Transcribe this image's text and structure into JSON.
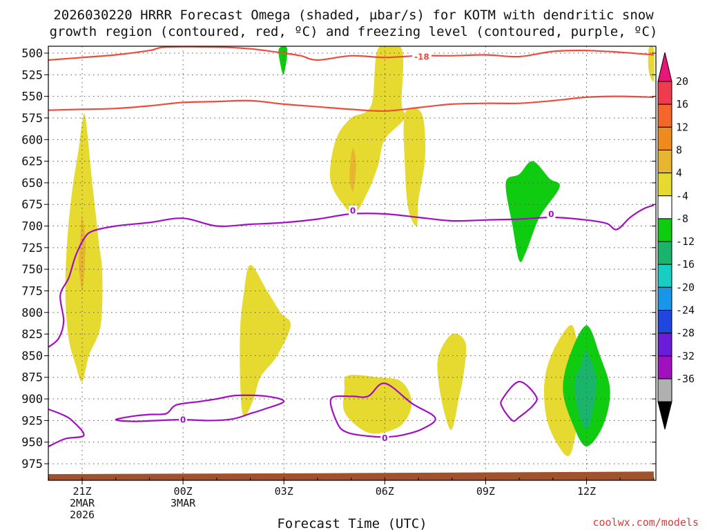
{
  "chart_data": {
    "type": "contour-timeheight",
    "title_line1": "2026030220 HRRR Forecast Omega (shaded, µbar/s) for KOTM with dendritic snow",
    "title_line2": "growth region (contoured, red, ºC) and freezing level (contoured, purple, ºC)",
    "xlabel": "Forecast Time (UTC)",
    "credit": "coolwx.com/models",
    "x_range": [
      20,
      38
    ],
    "y_range": [
      490,
      995
    ],
    "x_ticks": [
      {
        "x": 21,
        "line1": "21Z",
        "line2": "2MAR",
        "line3": "2026"
      },
      {
        "x": 24,
        "line1": "00Z",
        "line2": "3MAR",
        "line3": ""
      },
      {
        "x": 27,
        "line1": "03Z",
        "line2": "",
        "line3": ""
      },
      {
        "x": 30,
        "line1": "06Z",
        "line2": "",
        "line3": ""
      },
      {
        "x": 33,
        "line1": "09Z",
        "line2": "",
        "line3": ""
      },
      {
        "x": 36,
        "line1": "12Z",
        "line2": "",
        "line3": ""
      }
    ],
    "y_ticks": [
      "500",
      "525",
      "550",
      "575",
      "600",
      "625",
      "650",
      "675",
      "700",
      "725",
      "750",
      "775",
      "800",
      "825",
      "850",
      "875",
      "900",
      "925",
      "950",
      "975"
    ],
    "colorbar": {
      "labels": [
        "20",
        "16",
        "12",
        "8",
        "4",
        "-4",
        "-8",
        "-12",
        "-16",
        "-20",
        "-24",
        "-28",
        "-32",
        "-36"
      ],
      "colors": [
        "#ef3b4c",
        "#f5662a",
        "#ee8a1e",
        "#e8b531",
        "#e6d92f",
        "#ffffff",
        "#10cc10",
        "#1ab56a",
        "#18cdc3",
        "#1896e8",
        "#2046e0",
        "#6a1cd8",
        "#a010c0",
        "#b0b0b0"
      ],
      "top_arrow_color": "#e8157a",
      "bottom_arrow_color": "#000000"
    },
    "contour_labels": [
      {
        "text": "-18",
        "kind": "dgz",
        "x": 31.1,
        "y": 504
      },
      {
        "text": "0",
        "kind": "freezing",
        "x": 29.05,
        "y": 682
      },
      {
        "text": "0",
        "kind": "freezing",
        "x": 34.95,
        "y": 686
      },
      {
        "text": "0",
        "kind": "freezing",
        "x": 24.0,
        "y": 924
      },
      {
        "text": "0",
        "kind": "freezing",
        "x": 30.0,
        "y": 945
      }
    ],
    "series": [
      {
        "name": "dgz-upper",
        "kind": "line",
        "color": "#ef4a3c",
        "points": [
          [
            20,
            508
          ],
          [
            21,
            505
          ],
          [
            22,
            502
          ],
          [
            23,
            497
          ],
          [
            23.5,
            493
          ],
          [
            25,
            493
          ],
          [
            26,
            495
          ],
          [
            27,
            500
          ],
          [
            27.5,
            503
          ],
          [
            28,
            508
          ],
          [
            29,
            503
          ],
          [
            30,
            505
          ],
          [
            31,
            503
          ],
          [
            32,
            503
          ],
          [
            33,
            502
          ],
          [
            34,
            504
          ],
          [
            35,
            498
          ],
          [
            36,
            497
          ],
          [
            37,
            499
          ],
          [
            38,
            502
          ]
        ]
      },
      {
        "name": "dgz-lower",
        "kind": "line",
        "color": "#ef4a3c",
        "points": [
          [
            20,
            566
          ],
          [
            21,
            565
          ],
          [
            22,
            564
          ],
          [
            23,
            561
          ],
          [
            24,
            557
          ],
          [
            25,
            556
          ],
          [
            26,
            555
          ],
          [
            27,
            559
          ],
          [
            28,
            562
          ],
          [
            29,
            565
          ],
          [
            30,
            567
          ],
          [
            31,
            563
          ],
          [
            32,
            559
          ],
          [
            33,
            558
          ],
          [
            34,
            558
          ],
          [
            35,
            555
          ],
          [
            36,
            551
          ],
          [
            37,
            550
          ],
          [
            38,
            551
          ]
        ]
      },
      {
        "name": "freezing-level",
        "kind": "line",
        "color": "#a010c0",
        "points": [
          [
            20,
            840
          ],
          [
            20.3,
            830
          ],
          [
            20.45,
            810
          ],
          [
            20.35,
            780
          ],
          [
            20.6,
            760
          ],
          [
            20.8,
            735
          ],
          [
            21.05,
            715
          ],
          [
            21.3,
            706
          ],
          [
            22,
            700
          ],
          [
            23,
            696
          ],
          [
            24,
            691
          ],
          [
            25,
            700
          ],
          [
            26,
            698
          ],
          [
            27,
            696
          ],
          [
            28,
            692
          ],
          [
            29,
            686
          ],
          [
            30,
            686
          ],
          [
            31,
            690
          ],
          [
            32,
            694
          ],
          [
            33,
            693
          ],
          [
            34,
            692
          ],
          [
            35,
            690
          ],
          [
            36,
            693
          ],
          [
            36.6,
            697
          ],
          [
            36.9,
            704
          ],
          [
            37.3,
            690
          ],
          [
            37.7,
            680
          ],
          [
            38,
            676
          ]
        ]
      },
      {
        "name": "freezing-a",
        "kind": "closed",
        "color": "#a010c0",
        "points": [
          [
            23,
            918
          ],
          [
            23.5,
            917
          ],
          [
            23.8,
            907
          ],
          [
            24.5,
            903
          ],
          [
            25,
            900
          ],
          [
            25.6,
            896
          ],
          [
            26.5,
            897
          ],
          [
            27,
            903
          ],
          [
            26.4,
            912
          ],
          [
            26,
            917
          ],
          [
            25.5,
            923
          ],
          [
            24.8,
            925
          ],
          [
            24,
            924
          ],
          [
            23.2,
            925
          ],
          [
            22.5,
            926
          ],
          [
            22,
            924
          ],
          [
            22.5,
            920
          ]
        ]
      },
      {
        "name": "freezing-b",
        "kind": "closed",
        "color": "#a010c0",
        "points": [
          [
            28.4,
            900
          ],
          [
            29,
            897
          ],
          [
            29.5,
            897
          ],
          [
            30,
            882
          ],
          [
            30.8,
            905
          ],
          [
            31.5,
            922
          ],
          [
            31.1,
            935
          ],
          [
            30.5,
            942
          ],
          [
            30,
            944
          ],
          [
            29.5,
            943
          ],
          [
            28.9,
            939
          ],
          [
            28.6,
            929
          ]
        ]
      },
      {
        "name": "freezing-c",
        "kind": "closed",
        "color": "#a010c0",
        "points": [
          [
            33.5,
            900
          ],
          [
            34,
            880
          ],
          [
            34.5,
            897
          ],
          [
            34.4,
            908
          ],
          [
            34,
            921
          ],
          [
            33.8,
            925
          ],
          [
            33.5,
            910
          ]
        ]
      },
      {
        "name": "freezing-d",
        "kind": "line",
        "color": "#a010c0",
        "points": [
          [
            20,
            912
          ],
          [
            20.4,
            918
          ],
          [
            20.7,
            925
          ],
          [
            21.05,
            942
          ],
          [
            20.5,
            946
          ],
          [
            20,
            955
          ]
        ]
      },
      {
        "name": "omega-yellow-a",
        "kind": "filled",
        "color": "#e6d92f",
        "points": [
          [
            21,
            580
          ],
          [
            21.1,
            575
          ],
          [
            21.3,
            650
          ],
          [
            21.5,
            720
          ],
          [
            21.6,
            755
          ],
          [
            21.55,
            815
          ],
          [
            21.2,
            850
          ],
          [
            21,
            880
          ],
          [
            20.8,
            860
          ],
          [
            20.6,
            830
          ],
          [
            20.5,
            780
          ],
          [
            20.55,
            720
          ],
          [
            20.7,
            660
          ],
          [
            20.9,
            610
          ]
        ]
      },
      {
        "name": "omega-orange-a",
        "kind": "filled",
        "color": "#e8b531",
        "points": [
          [
            21,
            690
          ],
          [
            21.1,
            720
          ],
          [
            21.05,
            760
          ],
          [
            21,
            775
          ],
          [
            20.9,
            745
          ],
          [
            20.95,
            710
          ]
        ]
      },
      {
        "name": "omega-green-top",
        "kind": "filled",
        "color": "#10cc10",
        "points": [
          [
            26.85,
            495
          ],
          [
            27.1,
            495
          ],
          [
            27,
            524
          ],
          [
            26.9,
            514
          ]
        ]
      },
      {
        "name": "omega-yellow-06z",
        "kind": "filled",
        "color": "#e6d92f",
        "points": [
          [
            29.8,
            495
          ],
          [
            30.5,
            495
          ],
          [
            30.5,
            558
          ],
          [
            30.6,
            575
          ],
          [
            30,
            600
          ],
          [
            29.8,
            630
          ],
          [
            29.5,
            660
          ],
          [
            29.1,
            685
          ],
          [
            28.7,
            672
          ],
          [
            28.4,
            650
          ],
          [
            28.4,
            625
          ],
          [
            28.6,
            595
          ],
          [
            29,
            575
          ],
          [
            29.6,
            560
          ]
        ]
      },
      {
        "name": "omega-orange-06z",
        "kind": "filled",
        "color": "#e8b531",
        "points": [
          [
            29.05,
            610
          ],
          [
            29.15,
            630
          ],
          [
            29.05,
            660
          ],
          [
            28.95,
            640
          ]
        ]
      },
      {
        "name": "omega-yellow-07z",
        "kind": "filled",
        "color": "#e6d92f",
        "points": [
          [
            30.6,
            570
          ],
          [
            31.1,
            570
          ],
          [
            31.2,
            620
          ],
          [
            31,
            670
          ],
          [
            30.95,
            700
          ],
          [
            30.7,
            680
          ],
          [
            30.6,
            630
          ]
        ]
      },
      {
        "name": "omega-green-10z",
        "kind": "filled",
        "color": "#10cc10",
        "points": [
          [
            34,
            640
          ],
          [
            34.4,
            625
          ],
          [
            34.9,
            645
          ],
          [
            35.2,
            655
          ],
          [
            34.6,
            690
          ],
          [
            34.2,
            730
          ],
          [
            34,
            740
          ],
          [
            33.8,
            700
          ],
          [
            33.6,
            650
          ]
        ]
      },
      {
        "name": "omega-yellow-02z",
        "kind": "filled",
        "color": "#e6d92f",
        "points": [
          [
            26.0,
            745
          ],
          [
            26.5,
            775
          ],
          [
            26.9,
            800
          ],
          [
            27.2,
            815
          ],
          [
            26.8,
            850
          ],
          [
            26.3,
            875
          ],
          [
            26.1,
            900
          ],
          [
            25.8,
            920
          ],
          [
            25.7,
            880
          ],
          [
            25.7,
            820
          ],
          [
            25.8,
            780
          ]
        ]
      },
      {
        "name": "omega-yellow-05z",
        "kind": "filled",
        "color": "#e6d92f",
        "points": [
          [
            28.9,
            873
          ],
          [
            29.8,
            875
          ],
          [
            30.5,
            880
          ],
          [
            30.8,
            905
          ],
          [
            30.5,
            930
          ],
          [
            29.8,
            940
          ],
          [
            29.3,
            935
          ],
          [
            28.8,
            915
          ],
          [
            28.8,
            890
          ]
        ]
      },
      {
        "name": "omega-yellow-08z",
        "kind": "filled",
        "color": "#e6d92f",
        "points": [
          [
            32,
            825
          ],
          [
            32.4,
            835
          ],
          [
            32.35,
            870
          ],
          [
            32.2,
            900
          ],
          [
            32,
            935
          ],
          [
            31.8,
            920
          ],
          [
            31.6,
            880
          ],
          [
            31.6,
            850
          ]
        ]
      },
      {
        "name": "omega-yellow-11z",
        "kind": "filled",
        "color": "#e6d92f",
        "points": [
          [
            35.5,
            815
          ],
          [
            35.7,
            830
          ],
          [
            35.8,
            870
          ],
          [
            35.75,
            920
          ],
          [
            35.5,
            965
          ],
          [
            35.1,
            950
          ],
          [
            34.8,
            920
          ],
          [
            34.75,
            880
          ],
          [
            35,
            845
          ]
        ]
      },
      {
        "name": "omega-green-12z",
        "kind": "filled",
        "color": "#10cc10",
        "points": [
          [
            36,
            815
          ],
          [
            36.4,
            850
          ],
          [
            36.7,
            890
          ],
          [
            36.5,
            930
          ],
          [
            36,
            955
          ],
          [
            35.6,
            930
          ],
          [
            35.3,
            890
          ],
          [
            35.5,
            850
          ]
        ]
      },
      {
        "name": "omega-teal-12z",
        "kind": "filled",
        "color": "#1ab56a",
        "points": [
          [
            36,
            845
          ],
          [
            36.3,
            880
          ],
          [
            36.15,
            920
          ],
          [
            36,
            935
          ],
          [
            35.75,
            915
          ],
          [
            35.65,
            880
          ],
          [
            35.85,
            860
          ]
        ]
      },
      {
        "name": "omega-yellow-edge",
        "kind": "filled",
        "color": "#e6d92f",
        "points": [
          [
            37.85,
            495
          ],
          [
            38,
            495
          ],
          [
            38,
            532
          ],
          [
            37.85,
            520
          ]
        ]
      },
      {
        "name": "ground",
        "kind": "filled",
        "color": "#a0522d",
        "points": [
          [
            20,
            987
          ],
          [
            28,
            986
          ],
          [
            33,
            985
          ],
          [
            38,
            984
          ],
          [
            38,
            995
          ],
          [
            20,
            995
          ]
        ]
      }
    ]
  }
}
